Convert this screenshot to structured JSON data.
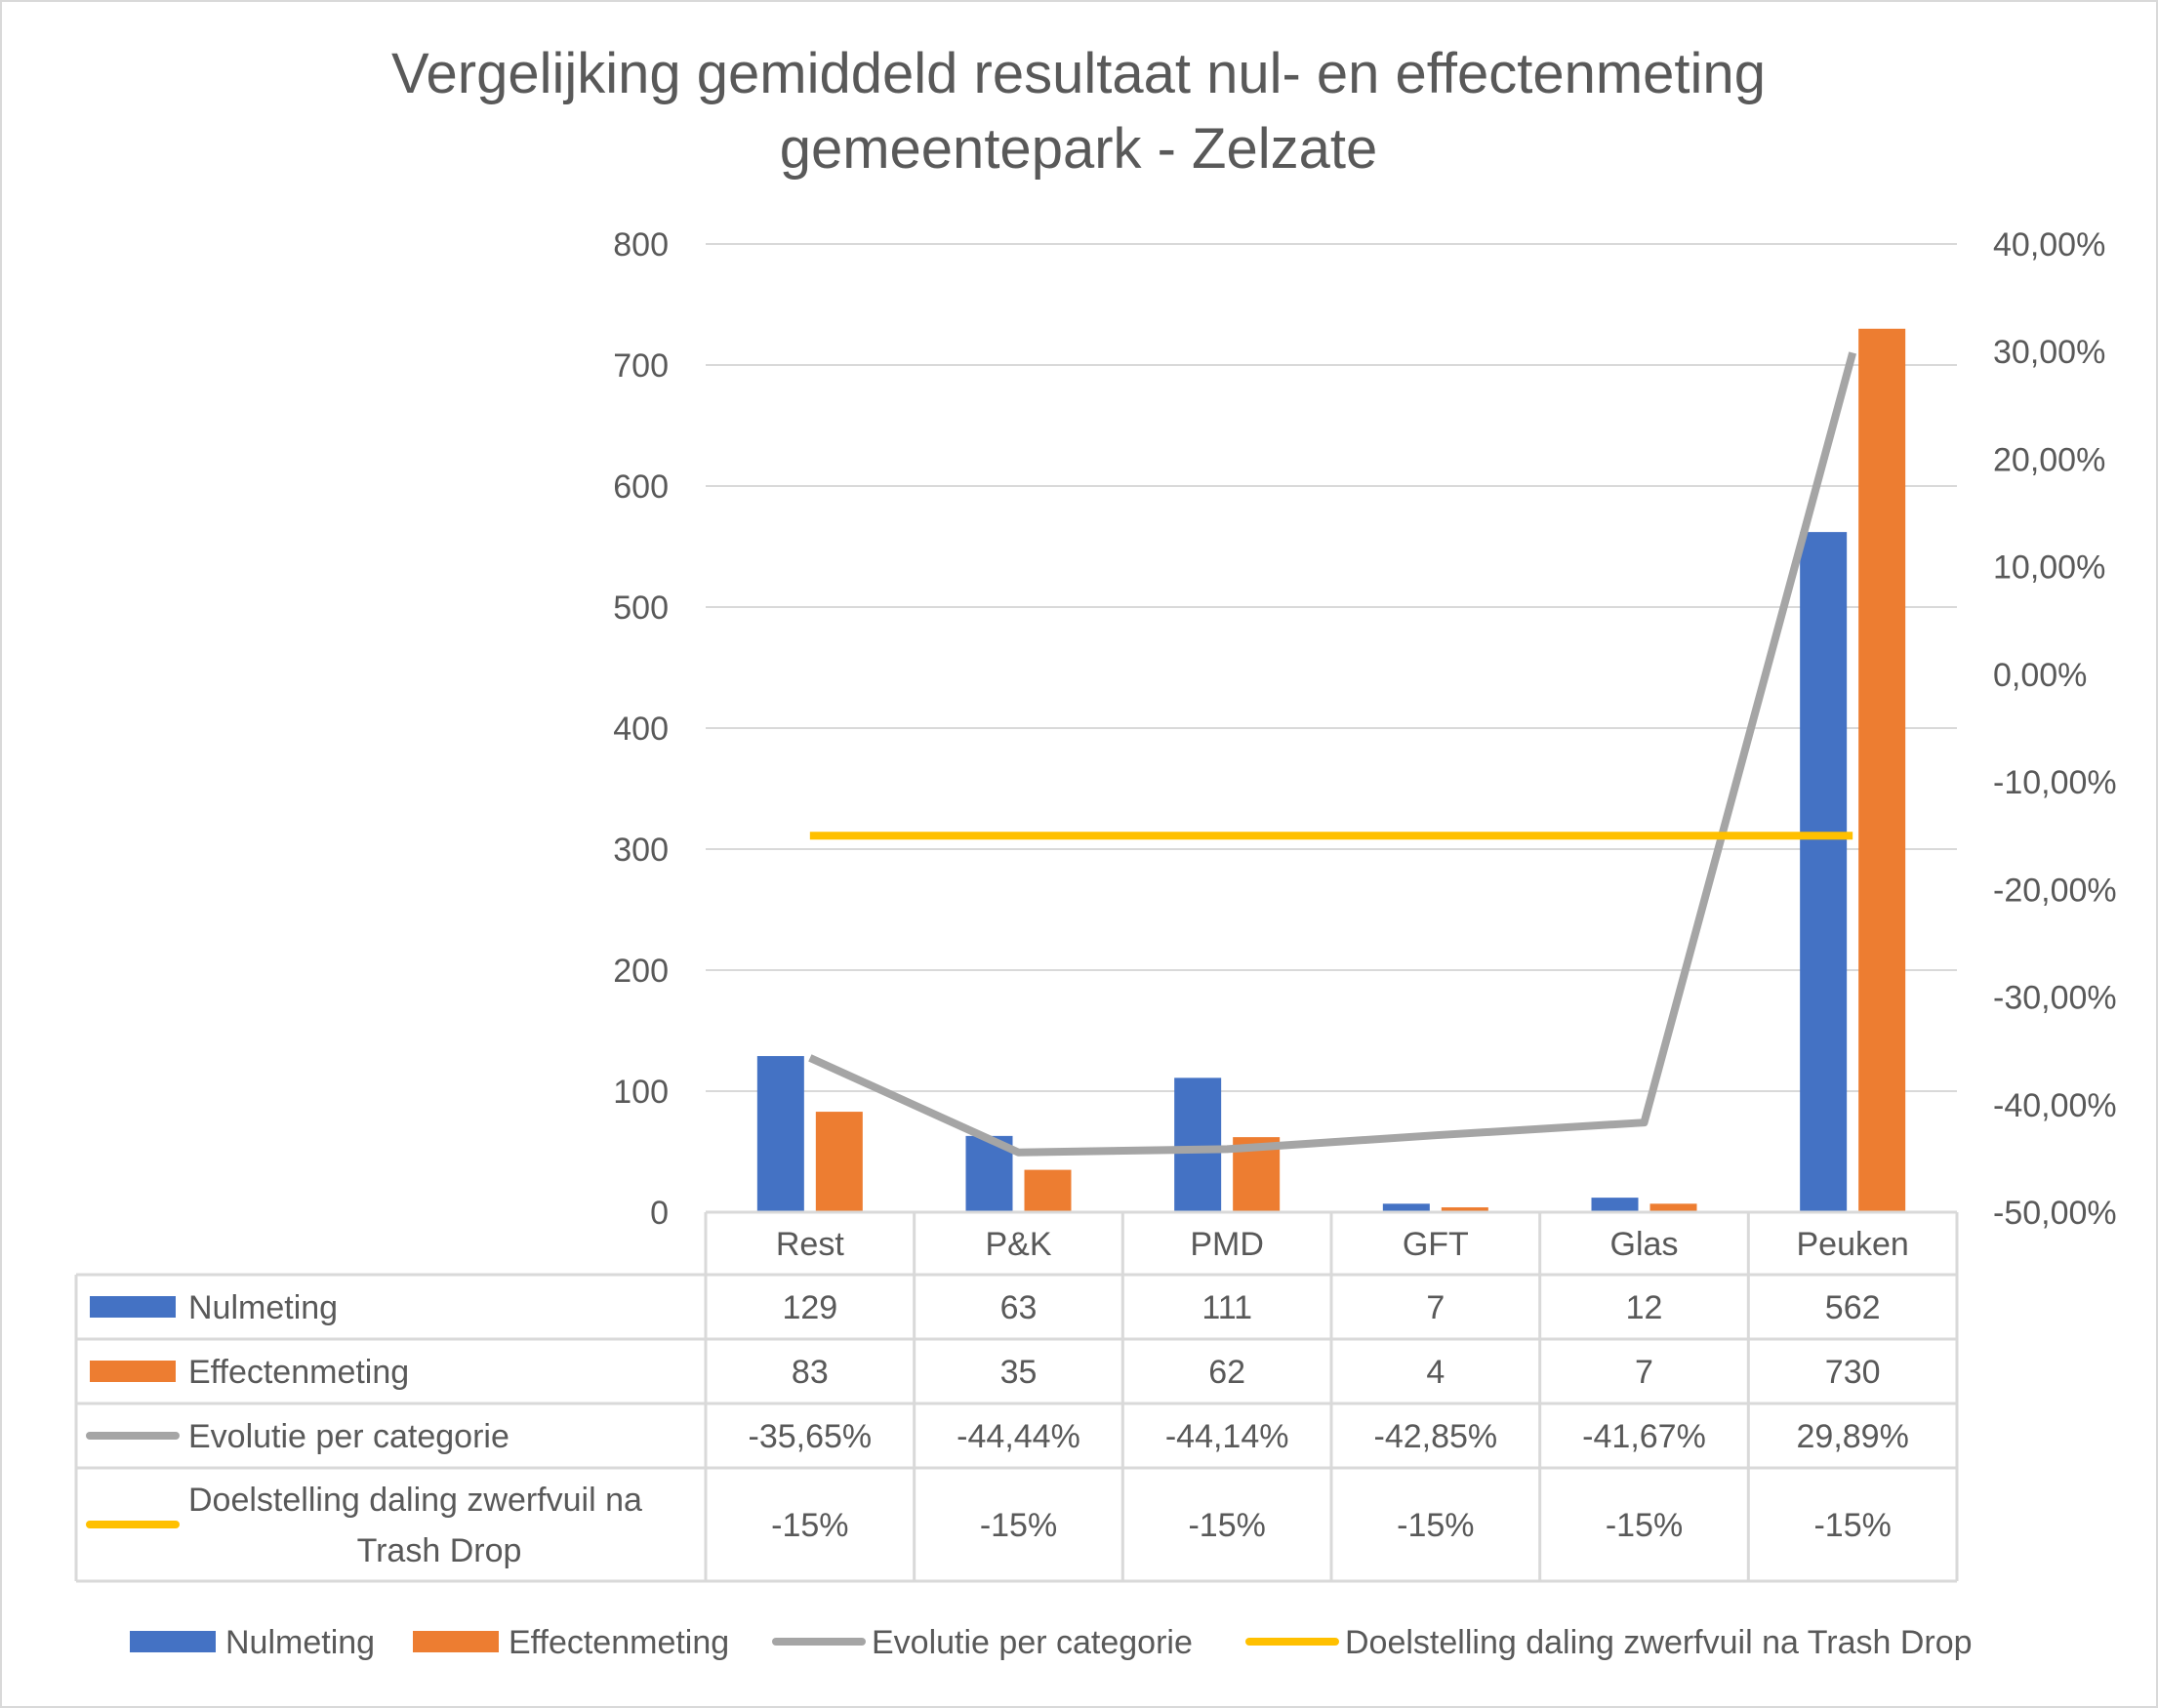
{
  "chart_data": {
    "type": "bar",
    "title": "Vergelijking gemiddeld resultaat nul- en effectenmeting",
    "subtitle": "gemeentepark -  Zelzate",
    "categories": [
      "Rest",
      "P&K",
      "PMD",
      "GFT",
      "Glas",
      "Peuken"
    ],
    "y_left": {
      "range": [
        0,
        800
      ],
      "ticks": [
        "0",
        "100",
        "200",
        "300",
        "400",
        "500",
        "600",
        "700",
        "800"
      ]
    },
    "y_right": {
      "range": [
        -0.5,
        0.4
      ],
      "ticks": [
        "-50,00%",
        "-40,00%",
        "-30,00%",
        "-20,00%",
        "-10,00%",
        "0,00%",
        "10,00%",
        "20,00%",
        "30,00%",
        "40,00%"
      ]
    },
    "grid": true,
    "legend_position": "bottom",
    "data_table": true,
    "series": [
      {
        "name": "Nulmeting",
        "type": "bar",
        "axis": "left",
        "color": "#4472C4",
        "values": [
          129,
          63,
          111,
          7,
          12,
          562
        ],
        "labels": [
          "129",
          "63",
          "111",
          "7",
          "12",
          "562"
        ]
      },
      {
        "name": "Effectenmeting",
        "type": "bar",
        "axis": "left",
        "color": "#ED7D31",
        "values": [
          83,
          35,
          62,
          4,
          7,
          730
        ],
        "labels": [
          "83",
          "35",
          "62",
          "4",
          "7",
          "730"
        ]
      },
      {
        "name": "Evolutie per categorie",
        "type": "line",
        "axis": "right",
        "color": "#A5A5A5",
        "values": [
          -0.3565,
          -0.4444,
          -0.4414,
          -0.4285,
          -0.4167,
          0.2989
        ],
        "labels": [
          "-35,65%",
          "-44,44%",
          "-44,14%",
          "-42,85%",
          "-41,67%",
          "29,89%"
        ]
      },
      {
        "name": "Doelstelling daling zwerfvuil na Trash Drop",
        "name_lines": [
          "Doelstelling daling zwerfvuil na",
          "Trash Drop"
        ],
        "type": "line",
        "axis": "right",
        "color": "#FFC000",
        "values": [
          -0.15,
          -0.15,
          -0.15,
          -0.15,
          -0.15,
          -0.15
        ],
        "labels": [
          "-15%",
          "-15%",
          "-15%",
          "-15%",
          "-15%",
          "-15%"
        ]
      }
    ]
  }
}
